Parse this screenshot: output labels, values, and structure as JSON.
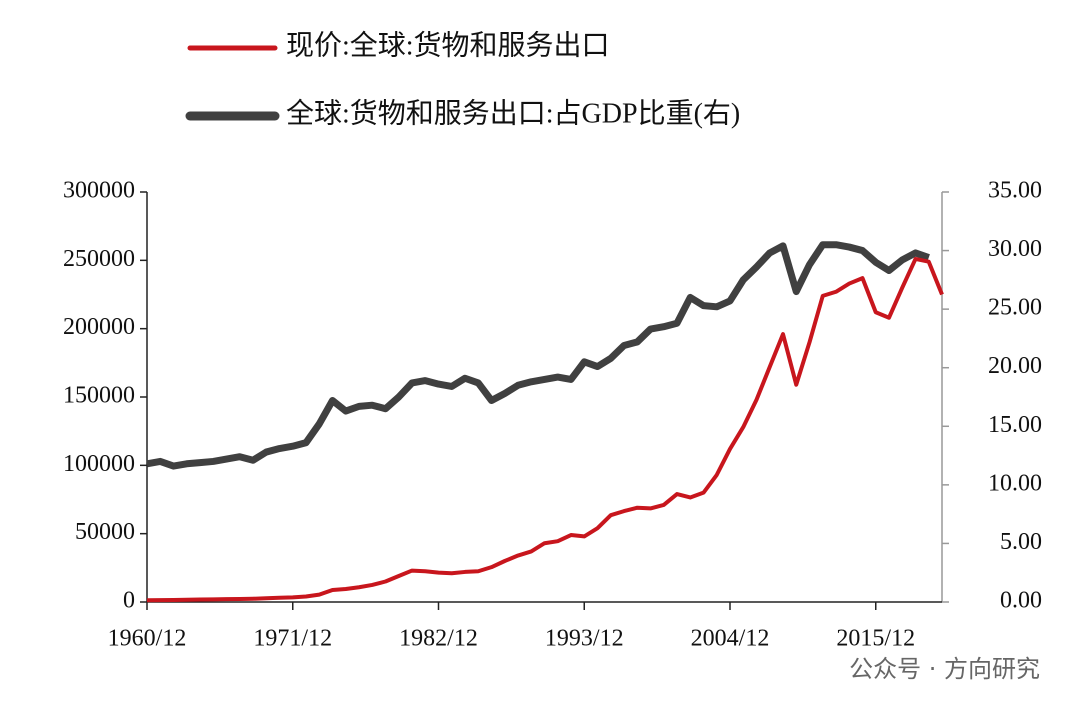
{
  "chart_data": {
    "type": "line",
    "categories": [
      "1960/12",
      null,
      null,
      null,
      null,
      null,
      null,
      null,
      null,
      null,
      null,
      "1971/12",
      null,
      null,
      null,
      null,
      null,
      null,
      null,
      null,
      null,
      null,
      "1982/12",
      null,
      null,
      null,
      null,
      null,
      null,
      null,
      null,
      null,
      null,
      "1993/12",
      null,
      null,
      null,
      null,
      null,
      null,
      null,
      null,
      null,
      null,
      "2004/12",
      null,
      null,
      null,
      null,
      null,
      null,
      null,
      null,
      null,
      null,
      "2015/12",
      null,
      null,
      null,
      null,
      null
    ],
    "series": [
      {
        "name": "现价:全球:货物和服务出口",
        "color": "#c8161d",
        "axis": "y",
        "values": [
          1300,
          1400,
          1500,
          1600,
          1800,
          1900,
          2100,
          2200,
          2400,
          2700,
          3100,
          3400,
          4000,
          5400,
          8800,
          9500,
          10800,
          12500,
          15000,
          19000,
          23000,
          22500,
          21500,
          21000,
          22000,
          22500,
          25500,
          30000,
          34000,
          37000,
          43000,
          44500,
          49000,
          48000,
          54000,
          63500,
          66500,
          69000,
          68500,
          71000,
          79000,
          76500,
          80000,
          93000,
          112000,
          128000,
          148000,
          172000,
          196000,
          159000,
          190000,
          224000,
          227000,
          233000,
          237000,
          212000,
          208000,
          230000,
          251000,
          249000,
          225000
        ]
      },
      {
        "name": "全球:货物和服务出口:占GDP比重(右)",
        "color": "#404040",
        "axis": "y2",
        "values": [
          11.8,
          12.0,
          11.6,
          11.8,
          11.9,
          12.0,
          12.2,
          12.4,
          12.1,
          12.8,
          13.1,
          13.3,
          13.6,
          15.2,
          17.2,
          16.3,
          16.7,
          16.8,
          16.5,
          17.5,
          18.7,
          18.9,
          18.6,
          18.4,
          19.1,
          18.7,
          17.2,
          17.8,
          18.5,
          18.8,
          19.0,
          19.2,
          19.0,
          20.5,
          20.1,
          20.8,
          21.9,
          22.2,
          23.3,
          23.5,
          23.8,
          26.0,
          25.3,
          25.2,
          25.7,
          27.5,
          28.6,
          29.8,
          30.4,
          26.5,
          28.8,
          30.5,
          30.5,
          30.3,
          30.0,
          29.0,
          28.3,
          29.2,
          29.8,
          29.4,
          null
        ]
      }
    ],
    "ylim": [
      0,
      300000
    ],
    "yticks": [
      0,
      50000,
      100000,
      150000,
      200000,
      250000,
      300000
    ],
    "y2lim": [
      0,
      35
    ],
    "y2ticks": [
      {
        "value": 0,
        "label": "0.00"
      },
      {
        "value": 5,
        "label": "5.00"
      },
      {
        "value": 10,
        "label": "10.00"
      },
      {
        "value": 15,
        "label": "15.00"
      },
      {
        "value": 20,
        "label": "20.00"
      },
      {
        "value": 25,
        "label": "25.00"
      },
      {
        "value": 30,
        "label": "30.00"
      },
      {
        "value": 35,
        "label": "35.00"
      }
    ],
    "watermark": "公众号 · 方向研究"
  }
}
